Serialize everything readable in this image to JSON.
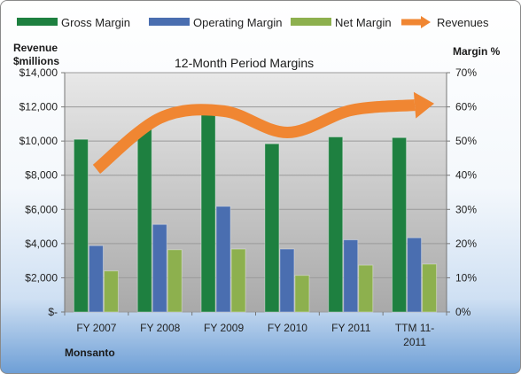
{
  "chart_data": {
    "type": "bar",
    "title": "12-Month Period Margins",
    "company": "Monsanto",
    "y_left_label": [
      "Revenue",
      "$millions"
    ],
    "y_right_label": "Margin %",
    "categories": [
      "FY 2007",
      "FY 2008",
      "FY 2009",
      "FY 2010",
      "FY 2011",
      "TTM 11-2011"
    ],
    "category_lines": [
      [
        "FY 2007"
      ],
      [
        "FY 2008"
      ],
      [
        "FY 2009"
      ],
      [
        "FY 2010"
      ],
      [
        "FY 2011"
      ],
      [
        "TTM 11-",
        "2011"
      ]
    ],
    "ylim_left": [
      0,
      14000
    ],
    "yticks_left": [
      "$-",
      "$2,000",
      "$4,000",
      "$6,000",
      "$8,000",
      "$10,000",
      "$12,000",
      "$14,000"
    ],
    "ylim_right": [
      0,
      70
    ],
    "yticks_right": [
      "0%",
      "10%",
      "20%",
      "30%",
      "40%",
      "50%",
      "60%",
      "70%"
    ],
    "series": [
      {
        "name": "Gross Margin",
        "axis": "right",
        "color": "#1e8040",
        "values": [
          50.5,
          54.5,
          58.0,
          49.2,
          51.2,
          51.0
        ]
      },
      {
        "name": "Operating Margin",
        "axis": "right",
        "color": "#4a6eb0",
        "values": [
          19.4,
          25.6,
          30.9,
          18.4,
          21.1,
          21.7
        ]
      },
      {
        "name": "Net Margin",
        "axis": "right",
        "color": "#8db04e",
        "values": [
          12.0,
          18.2,
          18.4,
          10.7,
          13.7,
          14.0
        ]
      },
      {
        "name": "Revenues",
        "axis": "left",
        "type": "line",
        "color": "#f08632",
        "values": [
          8350,
          11350,
          11750,
          10500,
          11800,
          12100
        ]
      }
    ],
    "grid": true,
    "legend": "top"
  }
}
